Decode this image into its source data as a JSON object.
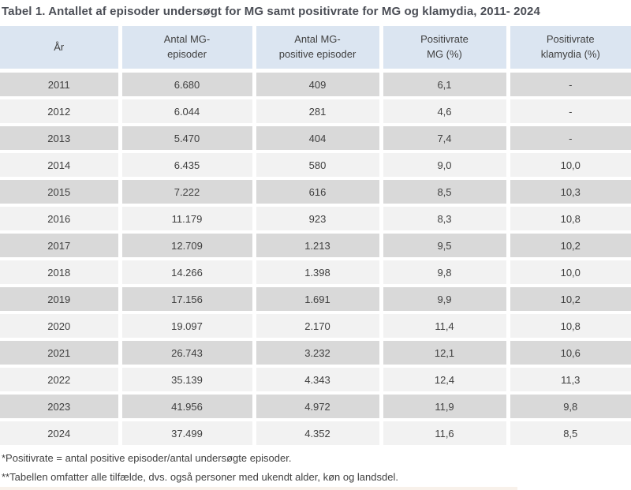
{
  "title": "Tabel 1. Antallet af episoder undersøgt for MG samt positivrate for MG og klamydia, 2011- 2024",
  "chart_data": {
    "type": "table",
    "title": "Tabel 1. Antallet af episoder undersøgt for MG samt positivrate for MG og klamydia, 2011- 2024",
    "columns": [
      "År",
      "Antal MG-\nepisoder",
      "Antal MG-\npositive episoder",
      "Positivrate\nMG (%)",
      "Positivrate\nklamydia (%)"
    ],
    "rows": [
      [
        "2011",
        "6.680",
        "409",
        "6,1",
        "-"
      ],
      [
        "2012",
        "6.044",
        "281",
        "4,6",
        "-"
      ],
      [
        "2013",
        "5.470",
        "404",
        "7,4",
        "-"
      ],
      [
        "2014",
        "6.435",
        "580",
        "9,0",
        "10,0"
      ],
      [
        "2015",
        "7.222",
        "616",
        "8,5",
        "10,3"
      ],
      [
        "2016",
        "11.179",
        "923",
        "8,3",
        "10,8"
      ],
      [
        "2017",
        "12.709",
        "1.213",
        "9,5",
        "10,2"
      ],
      [
        "2018",
        "14.266",
        "1.398",
        "9,8",
        "10,0"
      ],
      [
        "2019",
        "17.156",
        "1.691",
        "9,9",
        "10,2"
      ],
      [
        "2020",
        "19.097",
        "2.170",
        "11,4",
        "10,8"
      ],
      [
        "2021",
        "26.743",
        "3.232",
        "12,1",
        "10,6"
      ],
      [
        "2022",
        "35.139",
        "4.343",
        "12,4",
        "11,3"
      ],
      [
        "2023",
        "41.956",
        "4.972",
        "11,9",
        "9,8"
      ],
      [
        "2024",
        "37.499",
        "4.352",
        "11,6",
        "8,5"
      ]
    ]
  },
  "footnotes": [
    "*Positivrate = antal positive episoder/antal undersøgte episoder.",
    "**Tabellen omfatter alle tilfælde, dvs. også personer med ukendt alder, køn og landsdel."
  ],
  "colors": {
    "header_bg": "#dbe5f1",
    "row_dark": "#d9d9d9",
    "row_light": "#f2f2f2",
    "body_text": "#404040",
    "title_text": "#4b4e56",
    "cutoff_strip": "#f8f1ea"
  }
}
